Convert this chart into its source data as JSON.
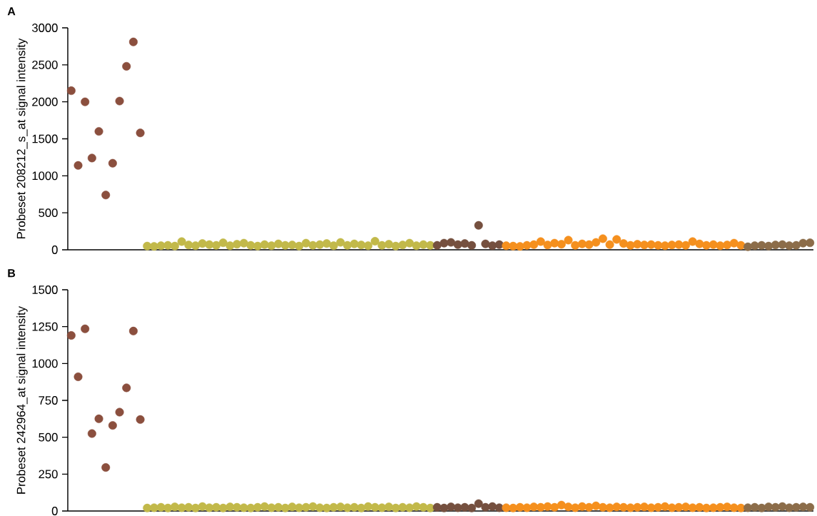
{
  "chart_data": [
    {
      "type": "scatter",
      "title": "A",
      "ylabel": "Probeset 208212_s_at signal intensity",
      "ylim": [
        0,
        3000
      ],
      "yticks": [
        0,
        500,
        1000,
        1500,
        2000,
        2500,
        3000
      ],
      "marker": "circle",
      "categories": [
        null,
        null,
        null,
        null,
        null,
        null,
        null,
        null,
        null,
        null,
        null,
        null,
        null,
        null,
        null,
        null,
        null,
        null,
        null,
        null,
        null,
        null,
        null,
        null,
        null,
        null,
        null,
        null,
        null,
        null,
        null,
        null,
        null,
        null,
        null,
        null,
        null,
        null,
        null,
        null,
        null,
        null,
        null,
        null,
        null,
        null,
        null,
        null,
        null,
        null,
        null,
        null,
        null,
        null,
        null,
        null,
        null,
        null,
        null,
        null,
        null,
        null,
        null,
        null,
        null,
        null,
        null,
        null,
        null,
        null,
        null,
        null,
        null,
        null,
        null,
        null,
        null,
        null,
        null,
        null,
        null,
        null,
        null,
        null,
        null,
        null,
        null,
        null,
        null,
        null,
        null,
        null,
        null,
        null,
        null,
        null,
        null,
        null,
        null,
        null,
        null,
        null,
        null,
        null,
        null,
        null,
        null,
        null
      ],
      "series": [
        {
          "color": "#8b4f3e",
          "values": [
            2150,
            1140,
            2000,
            1240,
            1600,
            740,
            1170,
            2010,
            2480,
            2810,
            1580,
            null,
            null,
            null,
            null,
            null,
            null,
            null,
            null,
            null,
            null,
            null,
            null,
            null,
            null,
            null,
            null,
            null,
            null,
            null,
            null,
            null,
            null,
            null,
            null,
            null,
            null,
            null,
            null,
            null,
            null,
            null,
            null,
            null,
            null,
            null,
            null,
            null,
            null,
            null,
            null,
            null,
            null,
            null,
            null,
            null,
            null,
            null,
            null,
            null,
            null,
            null,
            null,
            null,
            null,
            null,
            null,
            null,
            null,
            null,
            null,
            null,
            null,
            null,
            null,
            null,
            null,
            null,
            null,
            null,
            null,
            null,
            null,
            null,
            null,
            null,
            null,
            null,
            null,
            null,
            null,
            null,
            null,
            null,
            null,
            null,
            null,
            null,
            null,
            null,
            null,
            null,
            null,
            null,
            null,
            null,
            null,
            null
          ]
        },
        {
          "color": "#c2b94a",
          "values": [
            null,
            null,
            null,
            null,
            null,
            null,
            null,
            null,
            null,
            null,
            null,
            50,
            45,
            55,
            60,
            50,
            110,
            65,
            55,
            85,
            70,
            60,
            95,
            55,
            75,
            90,
            60,
            50,
            70,
            55,
            80,
            60,
            65,
            50,
            90,
            60,
            70,
            85,
            55,
            100,
            60,
            80,
            65,
            55,
            115,
            60,
            75,
            50,
            65,
            90,
            55,
            70,
            60,
            null,
            null,
            null,
            null,
            null,
            null,
            null,
            null,
            null,
            null,
            null,
            null,
            null,
            null,
            null,
            null,
            null,
            null,
            null,
            null,
            null,
            null,
            null,
            null,
            null,
            null,
            null,
            null,
            null,
            null,
            null,
            null,
            null,
            null,
            null,
            null,
            null,
            null,
            null,
            null,
            null,
            null,
            null,
            null,
            null,
            null,
            null,
            null,
            null,
            null,
            null,
            null,
            null,
            null,
            null
          ]
        },
        {
          "color": "#75503f",
          "values": [
            null,
            null,
            null,
            null,
            null,
            null,
            null,
            null,
            null,
            null,
            null,
            null,
            null,
            null,
            null,
            null,
            null,
            null,
            null,
            null,
            null,
            null,
            null,
            null,
            null,
            null,
            null,
            null,
            null,
            null,
            null,
            null,
            null,
            null,
            null,
            null,
            null,
            null,
            null,
            null,
            null,
            null,
            null,
            null,
            null,
            null,
            null,
            null,
            null,
            null,
            null,
            null,
            null,
            60,
            90,
            100,
            70,
            85,
            60,
            330,
            80,
            55,
            70,
            null,
            null,
            null,
            null,
            null,
            null,
            null,
            null,
            null,
            null,
            null,
            null,
            null,
            null,
            null,
            null,
            null,
            null,
            null,
            null,
            null,
            null,
            null,
            null,
            null,
            null,
            null,
            null,
            null,
            null,
            null,
            null,
            null,
            null,
            null,
            null,
            null,
            null,
            null,
            null,
            null,
            null,
            null,
            null,
            null
          ]
        },
        {
          "color": "#f5901e",
          "values": [
            null,
            null,
            null,
            null,
            null,
            null,
            null,
            null,
            null,
            null,
            null,
            null,
            null,
            null,
            null,
            null,
            null,
            null,
            null,
            null,
            null,
            null,
            null,
            null,
            null,
            null,
            null,
            null,
            null,
            null,
            null,
            null,
            null,
            null,
            null,
            null,
            null,
            null,
            null,
            null,
            null,
            null,
            null,
            null,
            null,
            null,
            null,
            null,
            null,
            null,
            null,
            null,
            null,
            null,
            null,
            null,
            null,
            null,
            null,
            null,
            null,
            null,
            null,
            55,
            50,
            45,
            60,
            70,
            110,
            65,
            90,
            75,
            130,
            60,
            80,
            70,
            100,
            150,
            70,
            140,
            85,
            60,
            75,
            65,
            70,
            60,
            55,
            65,
            70,
            60,
            110,
            80,
            60,
            70,
            55,
            65,
            90,
            60,
            null,
            null,
            null,
            null,
            null,
            null,
            null,
            null,
            null,
            null
          ]
        },
        {
          "color": "#8c6d4a",
          "values": [
            null,
            null,
            null,
            null,
            null,
            null,
            null,
            null,
            null,
            null,
            null,
            null,
            null,
            null,
            null,
            null,
            null,
            null,
            null,
            null,
            null,
            null,
            null,
            null,
            null,
            null,
            null,
            null,
            null,
            null,
            null,
            null,
            null,
            null,
            null,
            null,
            null,
            null,
            null,
            null,
            null,
            null,
            null,
            null,
            null,
            null,
            null,
            null,
            null,
            null,
            null,
            null,
            null,
            null,
            null,
            null,
            null,
            null,
            null,
            null,
            null,
            null,
            null,
            null,
            null,
            null,
            null,
            null,
            null,
            null,
            null,
            null,
            null,
            null,
            null,
            null,
            null,
            null,
            null,
            null,
            null,
            null,
            null,
            null,
            null,
            null,
            null,
            null,
            null,
            null,
            null,
            null,
            null,
            null,
            null,
            null,
            null,
            null,
            40,
            55,
            60,
            50,
            65,
            70,
            55,
            60,
            90,
            95
          ]
        }
      ]
    },
    {
      "type": "scatter",
      "title": "B",
      "ylabel": "Probeset 242964_at signal intensity",
      "ylim": [
        0,
        1500
      ],
      "yticks": [
        0,
        250,
        500,
        750,
        1000,
        1250,
        1500
      ],
      "marker": "circle",
      "categories": [
        null,
        null,
        null,
        null,
        null,
        null,
        null,
        null,
        null,
        null,
        null,
        null,
        null,
        null,
        null,
        null,
        null,
        null,
        null,
        null,
        null,
        null,
        null,
        null,
        null,
        null,
        null,
        null,
        null,
        null,
        null,
        null,
        null,
        null,
        null,
        null,
        null,
        null,
        null,
        null,
        null,
        null,
        null,
        null,
        null,
        null,
        null,
        null,
        null,
        null,
        null,
        null,
        null,
        null,
        null,
        null,
        null,
        null,
        null,
        null,
        null,
        null,
        null,
        null,
        null,
        null,
        null,
        null,
        null,
        null,
        null,
        null,
        null,
        null,
        null,
        null,
        null,
        null,
        null,
        null,
        null,
        null,
        null,
        null,
        null,
        null,
        null,
        null,
        null,
        null,
        null,
        null,
        null,
        null,
        null,
        null,
        null,
        null,
        null,
        null,
        null,
        null,
        null,
        null,
        null,
        null,
        null,
        null
      ],
      "series": [
        {
          "color": "#8b4f3e",
          "values": [
            1190,
            910,
            1235,
            525,
            625,
            295,
            580,
            670,
            835,
            1220,
            620,
            null,
            null,
            null,
            null,
            null,
            null,
            null,
            null,
            null,
            null,
            null,
            null,
            null,
            null,
            null,
            null,
            null,
            null,
            null,
            null,
            null,
            null,
            null,
            null,
            null,
            null,
            null,
            null,
            null,
            null,
            null,
            null,
            null,
            null,
            null,
            null,
            null,
            null,
            null,
            null,
            null,
            null,
            null,
            null,
            null,
            null,
            null,
            null,
            null,
            null,
            null,
            null,
            null,
            null,
            null,
            null,
            null,
            null,
            null,
            null,
            null,
            null,
            null,
            null,
            null,
            null,
            null,
            null,
            null,
            null,
            null,
            null,
            null,
            null,
            null,
            null,
            null,
            null,
            null,
            null,
            null,
            null,
            null,
            null,
            null,
            null,
            null,
            null,
            null,
            null,
            null,
            null,
            null,
            null,
            null,
            null,
            null
          ]
        },
        {
          "color": "#c2b94a",
          "values": [
            null,
            null,
            null,
            null,
            null,
            null,
            null,
            null,
            null,
            null,
            null,
            20,
            22,
            25,
            20,
            28,
            22,
            25,
            20,
            30,
            22,
            25,
            20,
            28,
            25,
            22,
            20,
            25,
            30,
            22,
            25,
            20,
            28,
            22,
            25,
            30,
            22,
            20,
            25,
            28,
            22,
            25,
            20,
            30,
            25,
            22,
            28,
            20,
            25,
            22,
            30,
            25,
            20,
            null,
            null,
            null,
            null,
            null,
            null,
            null,
            null,
            null,
            null,
            null,
            null,
            null,
            null,
            null,
            null,
            null,
            null,
            null,
            null,
            null,
            null,
            null,
            null,
            null,
            null,
            null,
            null,
            null,
            null,
            null,
            null,
            null,
            null,
            null,
            null,
            null,
            null,
            null,
            null,
            null,
            null,
            null,
            null,
            null,
            null,
            null,
            null,
            null,
            null,
            null,
            null,
            null,
            null,
            null
          ]
        },
        {
          "color": "#75503f",
          "values": [
            null,
            null,
            null,
            null,
            null,
            null,
            null,
            null,
            null,
            null,
            null,
            null,
            null,
            null,
            null,
            null,
            null,
            null,
            null,
            null,
            null,
            null,
            null,
            null,
            null,
            null,
            null,
            null,
            null,
            null,
            null,
            null,
            null,
            null,
            null,
            null,
            null,
            null,
            null,
            null,
            null,
            null,
            null,
            null,
            null,
            null,
            null,
            null,
            null,
            null,
            null,
            null,
            null,
            25,
            20,
            28,
            22,
            25,
            20,
            50,
            25,
            30,
            22,
            null,
            null,
            null,
            null,
            null,
            null,
            null,
            null,
            null,
            null,
            null,
            null,
            null,
            null,
            null,
            null,
            null,
            null,
            null,
            null,
            null,
            null,
            null,
            null,
            null,
            null,
            null,
            null,
            null,
            null,
            null,
            null,
            null,
            null,
            null,
            null,
            null,
            null,
            null,
            null,
            null,
            null,
            null,
            null,
            null
          ]
        },
        {
          "color": "#f5901e",
          "values": [
            null,
            null,
            null,
            null,
            null,
            null,
            null,
            null,
            null,
            null,
            null,
            null,
            null,
            null,
            null,
            null,
            null,
            null,
            null,
            null,
            null,
            null,
            null,
            null,
            null,
            null,
            null,
            null,
            null,
            null,
            null,
            null,
            null,
            null,
            null,
            null,
            null,
            null,
            null,
            null,
            null,
            null,
            null,
            null,
            null,
            null,
            null,
            null,
            null,
            null,
            null,
            null,
            null,
            null,
            null,
            null,
            null,
            null,
            null,
            null,
            null,
            null,
            null,
            22,
            20,
            25,
            22,
            28,
            25,
            30,
            25,
            40,
            28,
            22,
            30,
            25,
            35,
            25,
            22,
            28,
            25,
            22,
            25,
            28,
            22,
            25,
            30,
            22,
            25,
            28,
            22,
            25,
            20,
            22,
            25,
            28,
            22,
            20,
            null,
            null,
            null,
            null,
            null,
            null,
            null,
            null,
            null,
            null
          ]
        },
        {
          "color": "#8c6d4a",
          "values": [
            null,
            null,
            null,
            null,
            null,
            null,
            null,
            null,
            null,
            null,
            null,
            null,
            null,
            null,
            null,
            null,
            null,
            null,
            null,
            null,
            null,
            null,
            null,
            null,
            null,
            null,
            null,
            null,
            null,
            null,
            null,
            null,
            null,
            null,
            null,
            null,
            null,
            null,
            null,
            null,
            null,
            null,
            null,
            null,
            null,
            null,
            null,
            null,
            null,
            null,
            null,
            null,
            null,
            null,
            null,
            null,
            null,
            null,
            null,
            null,
            null,
            null,
            null,
            null,
            null,
            null,
            null,
            null,
            null,
            null,
            null,
            null,
            null,
            null,
            null,
            null,
            null,
            null,
            null,
            null,
            null,
            null,
            null,
            null,
            null,
            null,
            null,
            null,
            null,
            null,
            null,
            null,
            null,
            null,
            null,
            null,
            null,
            null,
            22,
            25,
            20,
            28,
            25,
            30,
            22,
            25,
            28,
            25
          ]
        }
      ]
    }
  ]
}
